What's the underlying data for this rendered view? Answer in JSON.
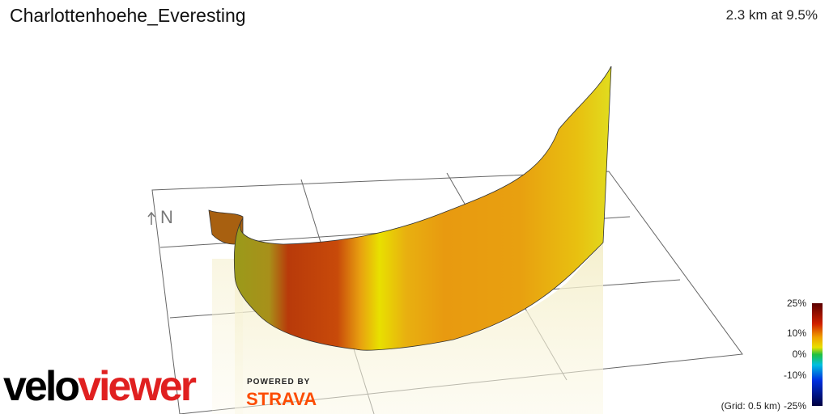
{
  "header": {
    "title": "Charlottenhoehe_Everesting",
    "stats": "2.3 km at 9.5%"
  },
  "compass": {
    "label": "N"
  },
  "legend": {
    "labels": [
      "25%",
      "10%",
      "0%",
      "-10%",
      "-25%"
    ],
    "grid_note": "(Grid: 0.5 km)"
  },
  "branding": {
    "logo_a": "velo",
    "logo_b": "viewer",
    "powered_by": "POWERED BY",
    "strava": "STRAVA"
  }
}
